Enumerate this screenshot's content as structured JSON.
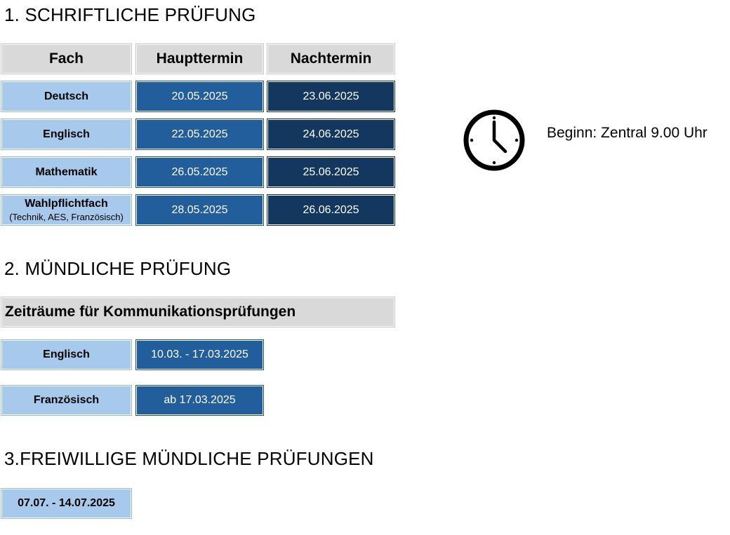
{
  "section1": {
    "title": "1. SCHRIFTLICHE PRÜFUNG",
    "headers": {
      "fach": "Fach",
      "haupttermin": "Haupttermin",
      "nachtermin": "Nachtermin"
    },
    "rows": [
      {
        "fach": "Deutsch",
        "sub": "",
        "haupt": "20.05.2025",
        "nach": "23.06.2025"
      },
      {
        "fach": "Englisch",
        "sub": "",
        "haupt": "22.05.2025",
        "nach": "24.06.2025"
      },
      {
        "fach": "Mathematik",
        "sub": "",
        "haupt": "26.05.2025",
        "nach": "25.06.2025"
      },
      {
        "fach": "Wahlpflichtfach",
        "sub": "(Technik, AES, Französisch)",
        "haupt": "28.05.2025",
        "nach": "26.06.2025"
      }
    ],
    "clock_icon": "clock-icon",
    "beginn": "Beginn: Zentral 9.00 Uhr"
  },
  "section2": {
    "title": "2. MÜNDLICHE PRÜFUNG",
    "subheader": "Zeiträume für Kommunikationsprüfungen",
    "rows": [
      {
        "fach": "Englisch",
        "zeitraum": "10.03. - 17.03.2025"
      },
      {
        "fach": "Französisch",
        "zeitraum": "ab 17.03.2025"
      }
    ]
  },
  "section3": {
    "title": "3.FREIWILLIGE MÜNDLICHE PRÜFUNGEN",
    "zeitraum": "07.07. - 14.07.2025"
  },
  "colors": {
    "header_gray": "#d9d9d9",
    "light_blue": "#a7c9ec",
    "mid_blue": "#225d9c",
    "dark_blue": "#14375f"
  }
}
